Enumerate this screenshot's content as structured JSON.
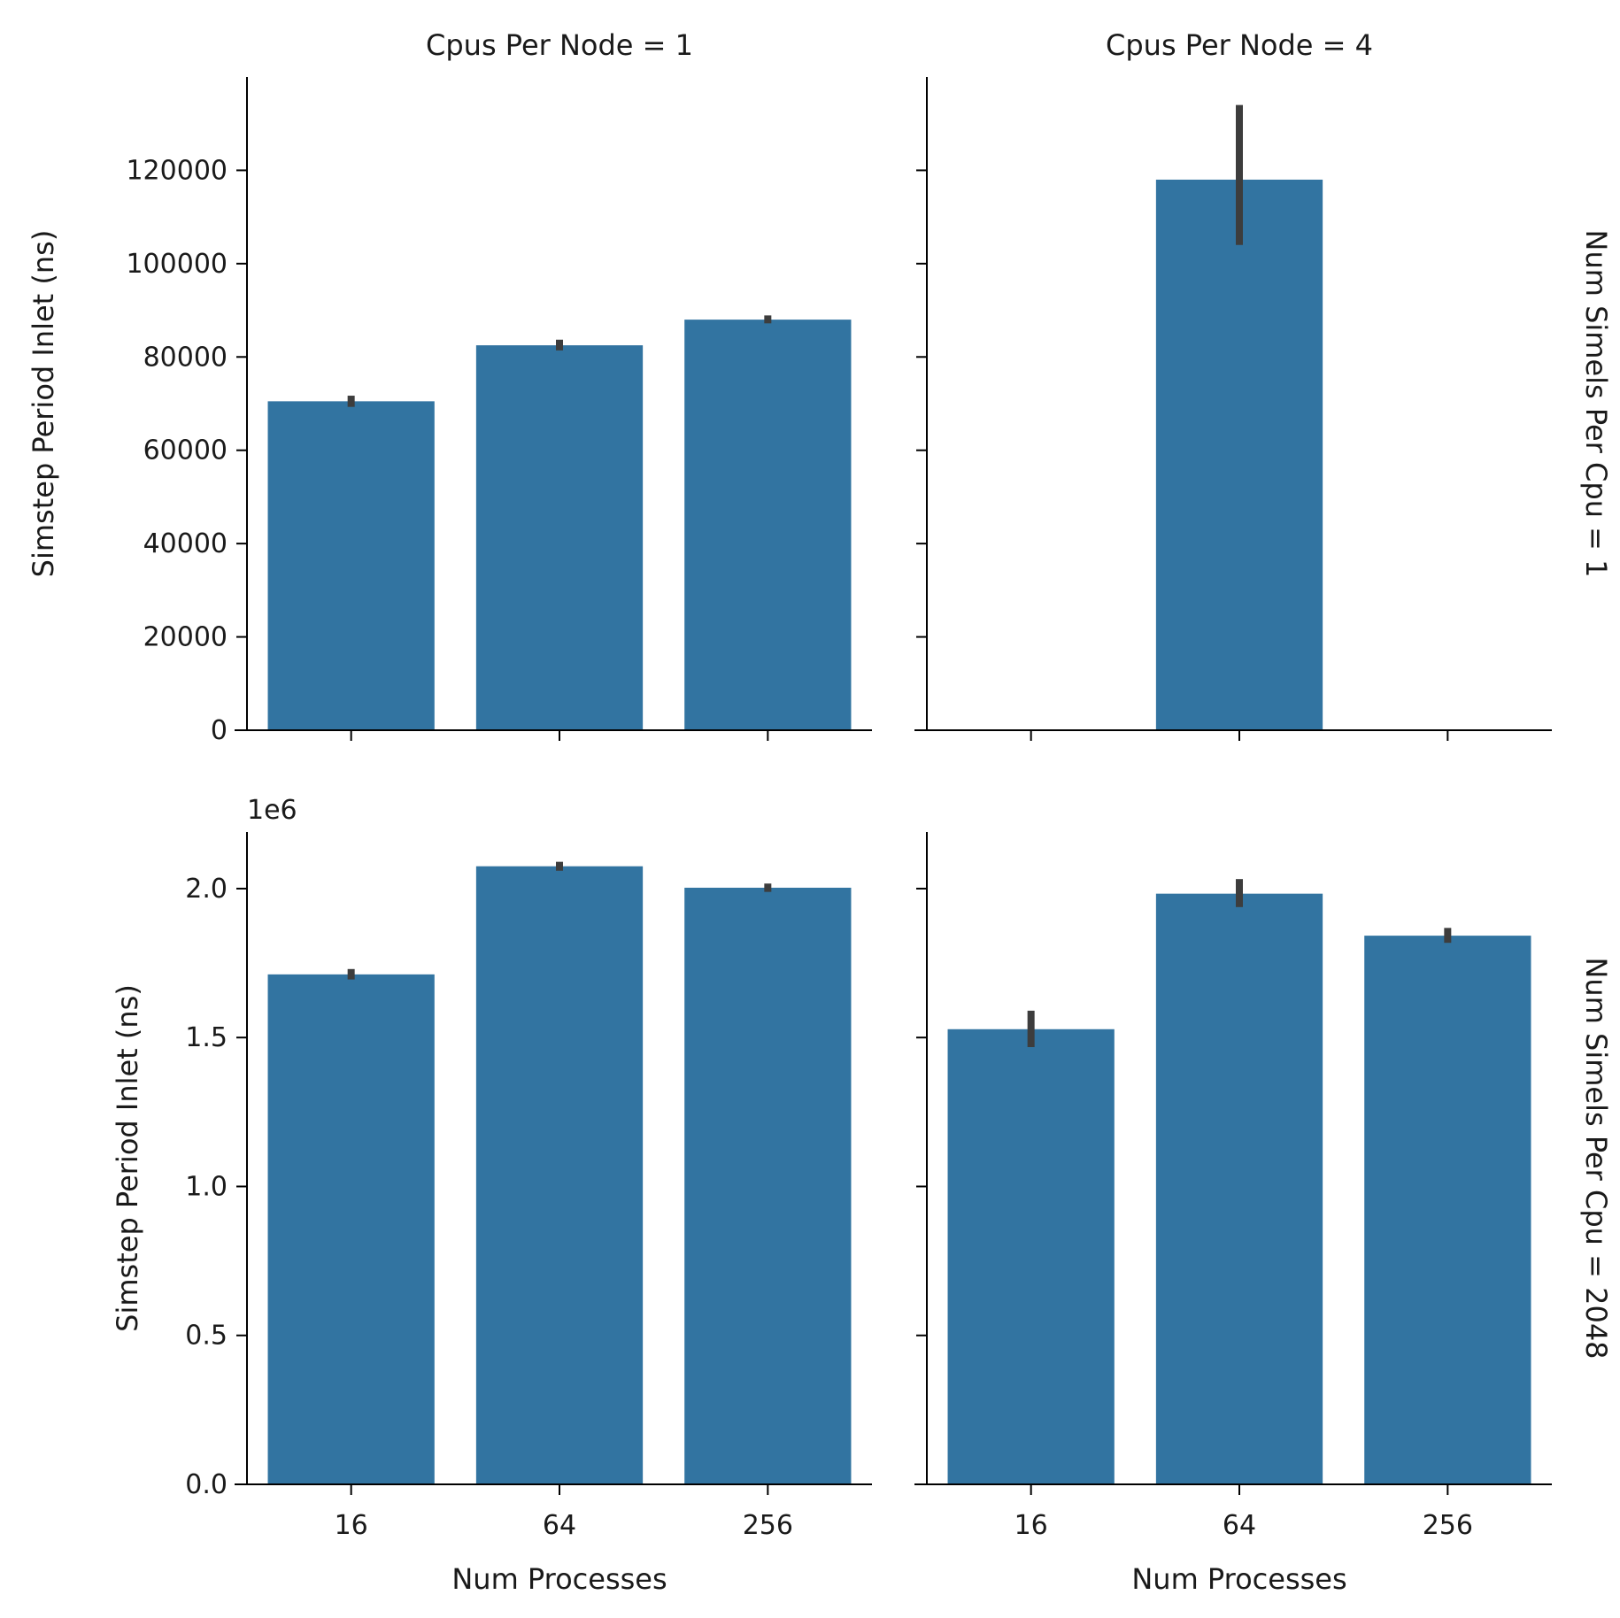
{
  "chart_data": {
    "type": "bar",
    "bar_color": "#3274a1",
    "errorbar_color": "#3d3d3d",
    "x_label": "Num Processes",
    "y_label": "Simstep Period Inlet (ns)",
    "categories": [
      "16",
      "64",
      "256"
    ],
    "column_titles": [
      "Cpus Per Node = 1",
      "Cpus Per Node = 4"
    ],
    "row_titles": [
      "Num Simels Per Cpu = 1",
      "Num Simels Per Cpu = 2048"
    ],
    "rows": [
      {
        "ylim": [
          0,
          140000
        ],
        "y_ticks": [
          0,
          20000,
          40000,
          60000,
          80000,
          100000,
          120000
        ],
        "y_tick_labels": [
          "0",
          "20000",
          "40000",
          "60000",
          "80000",
          "100000",
          "120000"
        ],
        "offset_text": "",
        "panels": [
          {
            "values": [
              70500,
              82500,
              88000
            ],
            "error_low": [
              69300,
              81400,
              87200
            ],
            "error_high": [
              71700,
              83700,
              88900
            ]
          },
          {
            "values": [
              null,
              118000,
              null
            ],
            "error_low": [
              null,
              104000,
              null
            ],
            "error_high": [
              null,
              134000,
              null
            ]
          }
        ]
      },
      {
        "ylim": [
          0,
          2190000
        ],
        "y_ticks": [
          0,
          500000,
          1000000,
          1500000,
          2000000
        ],
        "y_tick_labels": [
          "0.0",
          "0.5",
          "1.0",
          "1.5",
          "2.0"
        ],
        "offset_text": "1e6",
        "panels": [
          {
            "values": [
              1712000,
              2075000,
              2003000
            ],
            "error_low": [
              1695000,
              2060000,
              1989000
            ],
            "error_high": [
              1730000,
              2090000,
              2017000
            ]
          },
          {
            "values": [
              1528000,
              1983000,
              1842000
            ],
            "error_low": [
              1468000,
              1938000,
              1818000
            ],
            "error_high": [
              1590000,
              2032000,
              1868000
            ]
          }
        ]
      }
    ]
  }
}
